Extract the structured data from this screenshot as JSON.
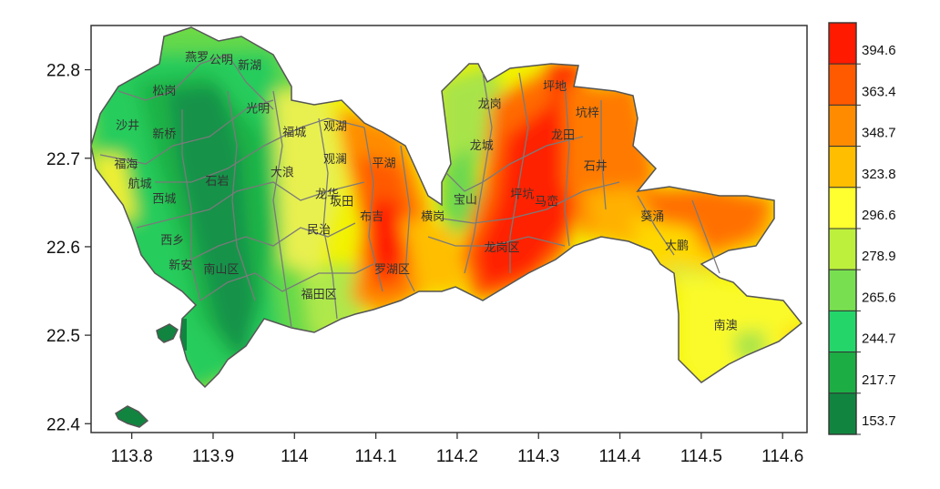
{
  "map": {
    "x_ticks": [
      "113.8",
      "113.9",
      "114",
      "114.1",
      "114.2",
      "114.3",
      "114.4",
      "114.5",
      "114.6"
    ],
    "y_ticks": [
      "22.8",
      "22.7",
      "22.6",
      "22.5",
      "22.4"
    ],
    "x_range": [
      113.75,
      114.63
    ],
    "y_range": [
      22.39,
      22.85
    ],
    "districts": [
      {
        "name": "燕罗",
        "lon": 113.88,
        "lat": 22.815
      },
      {
        "name": "公明",
        "lon": 113.91,
        "lat": 22.812
      },
      {
        "name": "新湖",
        "lon": 113.945,
        "lat": 22.806
      },
      {
        "name": "松岗",
        "lon": 113.84,
        "lat": 22.777
      },
      {
        "name": "光明",
        "lon": 113.955,
        "lat": 22.757
      },
      {
        "name": "沙井",
        "lon": 113.795,
        "lat": 22.738
      },
      {
        "name": "新桥",
        "lon": 113.84,
        "lat": 22.728
      },
      {
        "name": "福城",
        "lon": 114.0,
        "lat": 22.73
      },
      {
        "name": "观湖",
        "lon": 114.05,
        "lat": 22.737
      },
      {
        "name": "龙岗",
        "lon": 114.24,
        "lat": 22.762
      },
      {
        "name": "坪地",
        "lon": 114.32,
        "lat": 22.782
      },
      {
        "name": "坑梓",
        "lon": 114.36,
        "lat": 22.752
      },
      {
        "name": "龙城",
        "lon": 114.23,
        "lat": 22.715
      },
      {
        "name": "龙田",
        "lon": 114.33,
        "lat": 22.727
      },
      {
        "name": "福海",
        "lon": 113.793,
        "lat": 22.694
      },
      {
        "name": "观澜",
        "lon": 114.05,
        "lat": 22.7
      },
      {
        "name": "平湖",
        "lon": 114.11,
        "lat": 22.695
      },
      {
        "name": "石井",
        "lon": 114.37,
        "lat": 22.692
      },
      {
        "name": "大浪",
        "lon": 113.985,
        "lat": 22.685
      },
      {
        "name": "航城",
        "lon": 113.81,
        "lat": 22.672
      },
      {
        "name": "石岩",
        "lon": 113.905,
        "lat": 22.675
      },
      {
        "name": "龙华",
        "lon": 114.04,
        "lat": 22.66
      },
      {
        "name": "西城",
        "lon": 113.84,
        "lat": 22.655
      },
      {
        "name": "坂田",
        "lon": 114.058,
        "lat": 22.652
      },
      {
        "name": "宝山",
        "lon": 114.21,
        "lat": 22.654
      },
      {
        "name": "坪坑",
        "lon": 114.28,
        "lat": 22.66
      },
      {
        "name": "马峦",
        "lon": 114.31,
        "lat": 22.652
      },
      {
        "name": "布吉",
        "lon": 114.095,
        "lat": 22.635
      },
      {
        "name": "横岗",
        "lon": 114.17,
        "lat": 22.635
      },
      {
        "name": "葵涌",
        "lon": 114.44,
        "lat": 22.635
      },
      {
        "name": "民治",
        "lon": 114.03,
        "lat": 22.62
      },
      {
        "name": "西乡",
        "lon": 113.85,
        "lat": 22.608
      },
      {
        "name": "大鹏",
        "lon": 114.47,
        "lat": 22.602
      },
      {
        "name": "龙岗区",
        "lon": 114.255,
        "lat": 22.6
      },
      {
        "name": "新安",
        "lon": 113.86,
        "lat": 22.58
      },
      {
        "name": "南山区",
        "lon": 113.91,
        "lat": 22.575
      },
      {
        "name": "罗湖区",
        "lon": 114.12,
        "lat": 22.575
      },
      {
        "name": "福田区",
        "lon": 114.03,
        "lat": 22.547
      },
      {
        "name": "南澳",
        "lon": 114.53,
        "lat": 22.512
      }
    ]
  },
  "legend": {
    "labels": [
      "394.6",
      "363.4",
      "348.7",
      "323.8",
      "296.6",
      "278.9",
      "265.6",
      "244.7",
      "217.7",
      "153.7"
    ],
    "colors": [
      "#ff1a00",
      "#ff5a00",
      "#ff8c00",
      "#ffbe00",
      "#ffff30",
      "#bdf03c",
      "#78e050",
      "#24d66a",
      "#1cae45",
      "#118540"
    ]
  }
}
